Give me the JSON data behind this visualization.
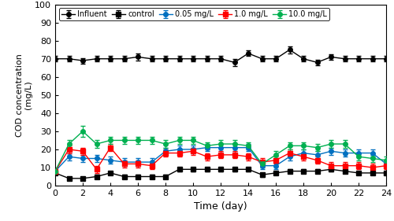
{
  "title": "",
  "xlabel": "Time (day)",
  "ylabel": "COD concentration\n(mg/L)",
  "xlim": [
    0,
    24
  ],
  "ylim": [
    0,
    100
  ],
  "xticks": [
    0,
    2,
    4,
    6,
    8,
    10,
    12,
    14,
    16,
    18,
    20,
    22,
    24
  ],
  "yticks": [
    0,
    10,
    20,
    30,
    40,
    50,
    60,
    70,
    80,
    90,
    100
  ],
  "series": {
    "Influent": {
      "x": [
        0,
        1,
        2,
        3,
        4,
        5,
        6,
        7,
        8,
        9,
        10,
        11,
        12,
        13,
        14,
        15,
        16,
        17,
        18,
        19,
        20,
        21,
        22,
        23,
        24
      ],
      "y": [
        70,
        70,
        69,
        70,
        70,
        70,
        71,
        70,
        70,
        70,
        70,
        70,
        70,
        68,
        73,
        70,
        70,
        75,
        70,
        68,
        71,
        70,
        70,
        70,
        70
      ],
      "yerr": [
        1.5,
        1.5,
        1.5,
        1.5,
        1.5,
        1.5,
        2,
        1.5,
        1.5,
        1.5,
        1.5,
        1.5,
        1.5,
        2,
        1.5,
        1.5,
        1.5,
        2,
        1.5,
        1.5,
        1.5,
        1.5,
        1.5,
        1.5,
        1.5
      ],
      "color": "#000000",
      "marker": "o"
    },
    "control": {
      "x": [
        0,
        1,
        2,
        3,
        4,
        5,
        6,
        7,
        8,
        9,
        10,
        11,
        12,
        13,
        14,
        15,
        16,
        17,
        18,
        19,
        20,
        21,
        22,
        23,
        24
      ],
      "y": [
        7,
        4,
        4,
        5,
        7,
        5,
        5,
        5,
        5,
        9,
        9,
        9,
        9,
        9,
        9,
        6,
        7,
        8,
        8,
        8,
        9,
        8,
        7,
        7,
        7
      ],
      "yerr": [
        1,
        1,
        1,
        1,
        1,
        1,
        1,
        1,
        1,
        1,
        1,
        1,
        1,
        1,
        1,
        1,
        1,
        1,
        1,
        1,
        1,
        1,
        1,
        1,
        1
      ],
      "color": "#000000",
      "marker": "s"
    },
    "0.05 mg/L": {
      "x": [
        0,
        1,
        2,
        3,
        4,
        5,
        6,
        7,
        8,
        9,
        10,
        11,
        12,
        13,
        14,
        15,
        16,
        17,
        18,
        19,
        20,
        21,
        22,
        23,
        24
      ],
      "y": [
        8,
        16,
        15,
        15,
        14,
        13,
        13,
        13,
        19,
        20,
        20,
        21,
        21,
        21,
        21,
        11,
        11,
        16,
        18,
        17,
        19,
        18,
        18,
        18,
        12
      ],
      "yerr": [
        1,
        2,
        2,
        2,
        2,
        2,
        2,
        2,
        2,
        2,
        2,
        2,
        2,
        2,
        2,
        2,
        2,
        2,
        2,
        2,
        2,
        2,
        2,
        2,
        2
      ],
      "color": "#0070C0",
      "marker": "o"
    },
    "1.0 mg/L": {
      "x": [
        0,
        1,
        2,
        3,
        4,
        5,
        6,
        7,
        8,
        9,
        10,
        11,
        12,
        13,
        14,
        15,
        16,
        17,
        18,
        19,
        20,
        21,
        22,
        23,
        24
      ],
      "y": [
        8,
        20,
        19,
        9,
        21,
        12,
        12,
        11,
        18,
        18,
        19,
        16,
        17,
        17,
        16,
        13,
        14,
        18,
        16,
        14,
        11,
        11,
        11,
        10,
        11
      ],
      "yerr": [
        1,
        2,
        2,
        2,
        2,
        2,
        2,
        2,
        2,
        2,
        2,
        2,
        2,
        2,
        2,
        2,
        2,
        2,
        2,
        2,
        2,
        2,
        2,
        2,
        2
      ],
      "color": "#FF0000",
      "marker": "s"
    },
    "10.0 mg/L": {
      "x": [
        0,
        1,
        2,
        3,
        4,
        5,
        6,
        7,
        8,
        9,
        10,
        11,
        12,
        13,
        14,
        15,
        16,
        17,
        18,
        19,
        20,
        21,
        22,
        23,
        24
      ],
      "y": [
        8,
        23,
        30,
        23,
        25,
        25,
        25,
        25,
        23,
        25,
        25,
        22,
        23,
        23,
        22,
        12,
        17,
        22,
        22,
        21,
        23,
        23,
        16,
        15,
        14
      ],
      "yerr": [
        1,
        2,
        3,
        2,
        2,
        2,
        2,
        2,
        2,
        2,
        2,
        2,
        2,
        2,
        2,
        2,
        2,
        2,
        2,
        2,
        2,
        2,
        2,
        2,
        2
      ],
      "color": "#00B050",
      "marker": "o"
    }
  },
  "legend_order": [
    "Influent",
    "control",
    "0.05 mg/L",
    "1.0 mg/L",
    "10.0 mg/L"
  ],
  "background_color": "#ffffff",
  "markersize": 4,
  "linewidth": 1.0,
  "capsize": 2,
  "elinewidth": 0.8
}
